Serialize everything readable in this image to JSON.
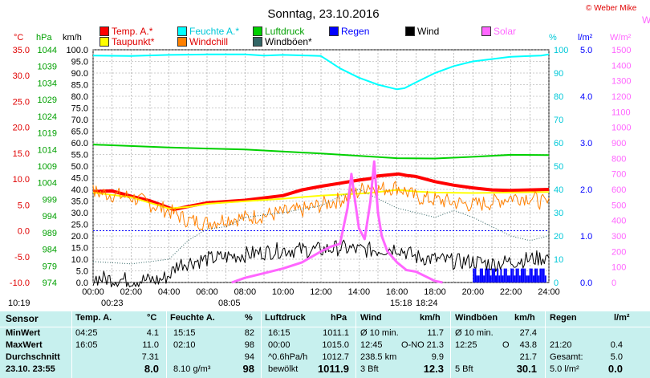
{
  "title": "Sonntag, 23.10.2016",
  "copyright": "© Weber Mike",
  "corner_letter": "W",
  "axis_units": {
    "temp": "°C",
    "hpa": "hPa",
    "kmh": "km/h",
    "pct": "%",
    "rain": "l/m²",
    "solar": "W/m²"
  },
  "legend": [
    {
      "label": "Temp. A.*",
      "color": "#ff0000",
      "text_color": "#e00000"
    },
    {
      "label": "Feuchte A.*",
      "color": "#00ffff",
      "text_color": "#00c8d8"
    },
    {
      "label": "Luftdruck",
      "color": "#00d000",
      "text_color": "#00a000"
    },
    {
      "label": "Regen",
      "color": "#0000ff",
      "text_color": "#0000ff"
    },
    {
      "label": "Wind",
      "color": "#000000",
      "text_color": "#000000"
    },
    {
      "label": "Solar",
      "color": "#ff66ff",
      "text_color": "#ff66ff"
    },
    {
      "label": "Taupunkt*",
      "color": "#ffff00",
      "text_color": "#e00000"
    },
    {
      "label": "Windchill",
      "color": "#ff8000",
      "text_color": "#e00000"
    },
    {
      "label": "Windböen*",
      "color": "#336666",
      "text_color": "#000000"
    }
  ],
  "markers": {
    "sunrise": "10:19",
    "dawn": "00:23",
    "sunset_label": "08:05",
    "moon_a": "15:18",
    "moon_b": "18:24"
  },
  "chart_data": {
    "type": "line",
    "x_ticks": [
      "00:00",
      "02:00",
      "04:00",
      "06:00",
      "08:00",
      "10:00",
      "12:00",
      "14:00",
      "16:00",
      "18:00",
      "20:00",
      "22:00",
      "24:00"
    ],
    "xlim": [
      0,
      24
    ],
    "axes": {
      "temp": {
        "unit": "°C",
        "range": [
          -10,
          35
        ],
        "ticks": [
          "35.0",
          "30.0",
          "25.0",
          "20.0",
          "15.0",
          "10.0",
          "5.0",
          "0.0",
          "-5.0",
          "-10.0"
        ]
      },
      "pressure": {
        "unit": "hPa",
        "range": [
          974,
          1044
        ],
        "ticks": [
          "1044",
          "1039",
          "1034",
          "1029",
          "1024",
          "1019",
          "1014",
          "1009",
          "1004",
          "999",
          "994",
          "989",
          "984",
          "979",
          "974"
        ]
      },
      "wind": {
        "unit": "km/h",
        "range": [
          0,
          100
        ],
        "ticks": [
          "100.0",
          "95.0",
          "90.0",
          "85.0",
          "80.0",
          "75.0",
          "70.0",
          "65.0",
          "60.0",
          "55.0",
          "50.0",
          "45.0",
          "40.0",
          "35.0",
          "30.0",
          "25.0",
          "20.0",
          "15.0",
          "10.0",
          "5.0",
          "0.0"
        ]
      },
      "humidity": {
        "unit": "%",
        "range": [
          0,
          100
        ],
        "ticks": [
          "100",
          "90",
          "80",
          "70",
          "60",
          "50",
          "40",
          "30",
          "20",
          "10",
          "0"
        ]
      },
      "rain": {
        "unit": "l/m²",
        "range": [
          0,
          5
        ],
        "ticks": [
          "5.0",
          "4.0",
          "3.0",
          "2.0",
          "1.0",
          "0.0"
        ]
      },
      "solar": {
        "unit": "W/m²",
        "range": [
          0,
          1500
        ],
        "ticks": [
          "1500",
          "1400",
          "1300",
          "1200",
          "1100",
          "1000",
          "900",
          "800",
          "700",
          "600",
          "500",
          "400",
          "300",
          "200",
          "100",
          "0"
        ]
      }
    },
    "series": [
      {
        "name": "Feuchte A.",
        "axis": "humidity",
        "color": "#00ffff",
        "width": 2,
        "points": [
          [
            0,
            97.5
          ],
          [
            2,
            97.3
          ],
          [
            4,
            97.8
          ],
          [
            6,
            98.0
          ],
          [
            8,
            98.0
          ],
          [
            9,
            97.5
          ],
          [
            10,
            97.8
          ],
          [
            11,
            97.6
          ],
          [
            12,
            97.3
          ],
          [
            13,
            92
          ],
          [
            14,
            88
          ],
          [
            15,
            85
          ],
          [
            16,
            83
          ],
          [
            16.4,
            83.5
          ],
          [
            17,
            86
          ],
          [
            18,
            90
          ],
          [
            19,
            93
          ],
          [
            20,
            95
          ],
          [
            21,
            96
          ],
          [
            22,
            97
          ],
          [
            23,
            97.3
          ],
          [
            23.6,
            97.5
          ],
          [
            24,
            98
          ]
        ]
      },
      {
        "name": "Luftdruck",
        "axis": "pressure",
        "color": "#00d000",
        "width": 2,
        "points": [
          [
            0,
            1015.5
          ],
          [
            4,
            1014.6
          ],
          [
            8,
            1014.0
          ],
          [
            12,
            1012.8
          ],
          [
            16,
            1011.4
          ],
          [
            18,
            1011.3
          ],
          [
            20,
            1011.8
          ],
          [
            22,
            1012.4
          ],
          [
            24,
            1012.3
          ]
        ]
      },
      {
        "name": "Temp. A.",
        "axis": "temp",
        "color": "#ff0000",
        "width": 4,
        "points": [
          [
            0,
            7.6
          ],
          [
            1,
            7.7
          ],
          [
            2,
            6.7
          ],
          [
            3,
            5.8
          ],
          [
            4.25,
            4.1
          ],
          [
            5,
            4.7
          ],
          [
            6,
            5.4
          ],
          [
            8,
            5.9
          ],
          [
            10,
            6.8
          ],
          [
            11,
            7.9
          ],
          [
            12,
            8.6
          ],
          [
            13,
            9.2
          ],
          [
            14,
            9.8
          ],
          [
            14.6,
            10.1
          ],
          [
            15,
            10.6
          ],
          [
            16.08,
            11.0
          ],
          [
            16.5,
            10.7
          ],
          [
            17,
            10.5
          ],
          [
            18,
            9.5
          ],
          [
            19,
            8.8
          ],
          [
            20,
            8.3
          ],
          [
            21,
            7.9
          ],
          [
            22,
            7.8
          ],
          [
            23,
            7.9
          ],
          [
            24,
            8.0
          ]
        ]
      },
      {
        "name": "Taupunkt",
        "axis": "temp",
        "color": "#ffff00",
        "width": 2,
        "points": [
          [
            0,
            7.4
          ],
          [
            2,
            6.5
          ],
          [
            4,
            4.3
          ],
          [
            5,
            4.6
          ],
          [
            6,
            5.2
          ],
          [
            8,
            5.7
          ],
          [
            10,
            6.2
          ],
          [
            12,
            6.8
          ],
          [
            14,
            7.2
          ],
          [
            14.5,
            7.3
          ],
          [
            15,
            7.5
          ],
          [
            16,
            7.9
          ],
          [
            17,
            7.6
          ],
          [
            18,
            7.4
          ],
          [
            20,
            7.3
          ],
          [
            22,
            7.4
          ],
          [
            24,
            7.5
          ]
        ]
      },
      {
        "name": "Windchill",
        "axis": "temp",
        "color": "#ff8000",
        "width": 1,
        "noisy": true,
        "points": [
          [
            0,
            7.5
          ],
          [
            2,
            6.5
          ],
          [
            4,
            3.8
          ],
          [
            5,
            2.0
          ],
          [
            6,
            1.5
          ],
          [
            7,
            2.3
          ],
          [
            8,
            2.5
          ],
          [
            10,
            3.5
          ],
          [
            11,
            4.0
          ],
          [
            12,
            5.0
          ],
          [
            13,
            6.0
          ],
          [
            14,
            7.5
          ],
          [
            14.5,
            9.0
          ],
          [
            15,
            8.0
          ],
          [
            16,
            8.5
          ],
          [
            17,
            6.5
          ],
          [
            18,
            6.0
          ],
          [
            19,
            5.5
          ],
          [
            20,
            5.0
          ],
          [
            21,
            5.5
          ],
          [
            22,
            6.5
          ],
          [
            23,
            6.5
          ],
          [
            24,
            5.0
          ]
        ]
      },
      {
        "name": "Windböen",
        "axis": "wind",
        "color": "#336666",
        "width": 1,
        "dotted": true,
        "points": [
          [
            0,
            9
          ],
          [
            2,
            8
          ],
          [
            3,
            9
          ],
          [
            4,
            10
          ],
          [
            5,
            18
          ],
          [
            6,
            23
          ],
          [
            7,
            24
          ],
          [
            8,
            28
          ],
          [
            10,
            30
          ],
          [
            12,
            33
          ],
          [
            13,
            37
          ],
          [
            14,
            40
          ],
          [
            15,
            36
          ],
          [
            16,
            32
          ],
          [
            17,
            30
          ],
          [
            18,
            28
          ],
          [
            19,
            31
          ],
          [
            20,
            28
          ],
          [
            21,
            24
          ],
          [
            22,
            20
          ],
          [
            23,
            18
          ],
          [
            24,
            20
          ]
        ]
      },
      {
        "name": "Wind",
        "axis": "wind",
        "color": "#000000",
        "width": 1,
        "noisy": true,
        "points": [
          [
            0,
            2
          ],
          [
            2,
            1
          ],
          [
            3.5,
            1
          ],
          [
            4,
            3
          ],
          [
            4.5,
            8
          ],
          [
            6,
            10
          ],
          [
            8,
            12
          ],
          [
            10,
            14
          ],
          [
            12,
            14
          ],
          [
            13,
            15
          ],
          [
            14,
            14
          ],
          [
            15,
            14
          ],
          [
            16,
            15
          ],
          [
            17,
            11
          ],
          [
            18,
            10
          ],
          [
            19,
            9
          ],
          [
            20,
            9
          ],
          [
            21,
            8
          ],
          [
            22,
            9
          ],
          [
            23,
            10
          ],
          [
            24,
            11
          ]
        ]
      },
      {
        "name": "Solar",
        "axis": "solar",
        "color": "#ff66ff",
        "width": 3,
        "points": [
          [
            7.3,
            0
          ],
          [
            8,
            30
          ],
          [
            9,
            60
          ],
          [
            10,
            90
          ],
          [
            11,
            130
          ],
          [
            12,
            200
          ],
          [
            12.5,
            230
          ],
          [
            13,
            250
          ],
          [
            13.4,
            480
          ],
          [
            13.6,
            700
          ],
          [
            13.8,
            520
          ],
          [
            14,
            350
          ],
          [
            14.3,
            280
          ],
          [
            14.6,
            520
          ],
          [
            14.8,
            780
          ],
          [
            15,
            450
          ],
          [
            15.2,
            300
          ],
          [
            15.5,
            200
          ],
          [
            16,
            130
          ],
          [
            16.5,
            80
          ],
          [
            17,
            70
          ],
          [
            17.5,
            40
          ],
          [
            18,
            10
          ],
          [
            18.4,
            0
          ]
        ]
      }
    ],
    "rain_bars": {
      "start": 20.0,
      "end": 23.8,
      "axis": "rain",
      "values_mm": 0.3
    },
    "reference_line": {
      "axis": "temp",
      "value": 0.0,
      "color": "#0000ff"
    }
  },
  "stats": {
    "headers": {
      "sensor": "Sensor",
      "temp": "Temp. A.",
      "temp_unit": "°C",
      "hum": "Feuchte A.",
      "hum_unit": "%",
      "press": "Luftdruck",
      "press_unit": "hPa",
      "wind": "Wind",
      "wind_unit": "km/h",
      "gust": "Windböen",
      "gust_unit": "km/h",
      "rain": "Regen",
      "rain_unit": "l/m²"
    },
    "rows": [
      {
        "label": "MinWert",
        "temp_time": "04:25",
        "temp_val": "4.1",
        "hum_time": "15:15",
        "hum_val": "82",
        "press_time": "16:15",
        "press_val": "1011.1",
        "wind_a": "Ø 10 min.",
        "wind_val": "11.7",
        "gust_a": "Ø 10 min.",
        "gust_val": "27.4",
        "rain_a": "",
        "rain_val": ""
      },
      {
        "label": "MaxWert",
        "temp_time": "16:05",
        "temp_val": "11.0",
        "hum_time": "02:10",
        "hum_val": "98",
        "press_time": "00:00",
        "press_val": "1015.0",
        "wind_a": "12:45",
        "wind_b": "O-NO",
        "wind_val": "21.3",
        "gust_a": "12:25",
        "gust_b": "O",
        "gust_val": "43.8",
        "rain_a": "21:20",
        "rain_val": "0.4"
      },
      {
        "label": "Durchschnitt",
        "temp_time": "",
        "temp_val": "7.31",
        "hum_time": "",
        "hum_val": "94",
        "press_time": "^0.6hPa/h",
        "press_val": "1012.7",
        "wind_a": "238.5 km",
        "wind_val": "9.9",
        "gust_a": "",
        "gust_val": "21.7",
        "rain_a": "Gesamt:",
        "rain_val": "5.0"
      },
      {
        "label": "23.10. 23:55",
        "temp_time": "",
        "temp_val": "8.0",
        "hum_time": "8.10 g/m³",
        "hum_val": "98",
        "press_time": "bewölkt",
        "press_val": "1011.9",
        "wind_a": "3 Bft",
        "wind_val": "12.3",
        "gust_a": "5 Bft",
        "gust_val": "30.1",
        "rain_a": "5.0 l/m²",
        "rain_val": "0.0"
      }
    ]
  }
}
